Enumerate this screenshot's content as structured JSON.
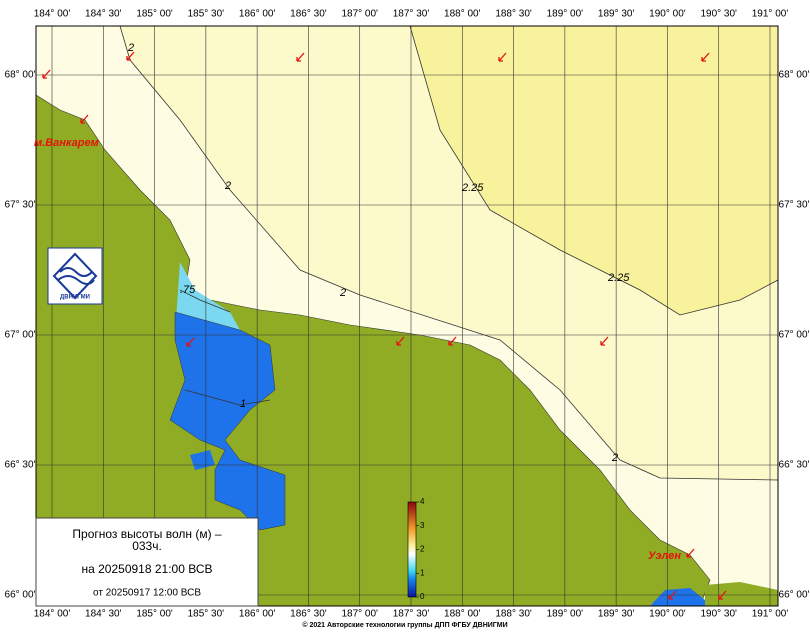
{
  "map": {
    "lon_labels": [
      "184° 00'",
      "184° 30'",
      "185° 00'",
      "185° 30'",
      "186° 00'",
      "186° 30'",
      "187° 00'",
      "187° 30'",
      "188° 00'",
      "188° 30'",
      "189° 00'",
      "189° 30'",
      "190° 00'",
      "190° 30'",
      "191° 00'"
    ],
    "lat_labels": [
      "68° 00'",
      "67° 30'",
      "67° 00'",
      "66° 30'",
      "66° 00'"
    ],
    "places": [
      "м.Ванкарем",
      "Уэлен"
    ],
    "contour_labels": [
      "2",
      "2",
      "2",
      "2",
      "2.25",
      "2.25",
      ".75",
      "1"
    ],
    "logo": "ДВНИГМИ",
    "legend": {
      "title": "Прогноз высоты волн (м) –",
      "lead": "033ч.",
      "valid": "на 20250918 21:00 ВСВ",
      "issued": "от 20250917 12:00 ВСВ"
    },
    "colorbar": {
      "ticks": [
        0,
        1,
        2,
        3,
        4
      ]
    },
    "footer": "© 2021 Авторские технологии группы ДПП ФГБУ ДВНИГМИ"
  }
}
